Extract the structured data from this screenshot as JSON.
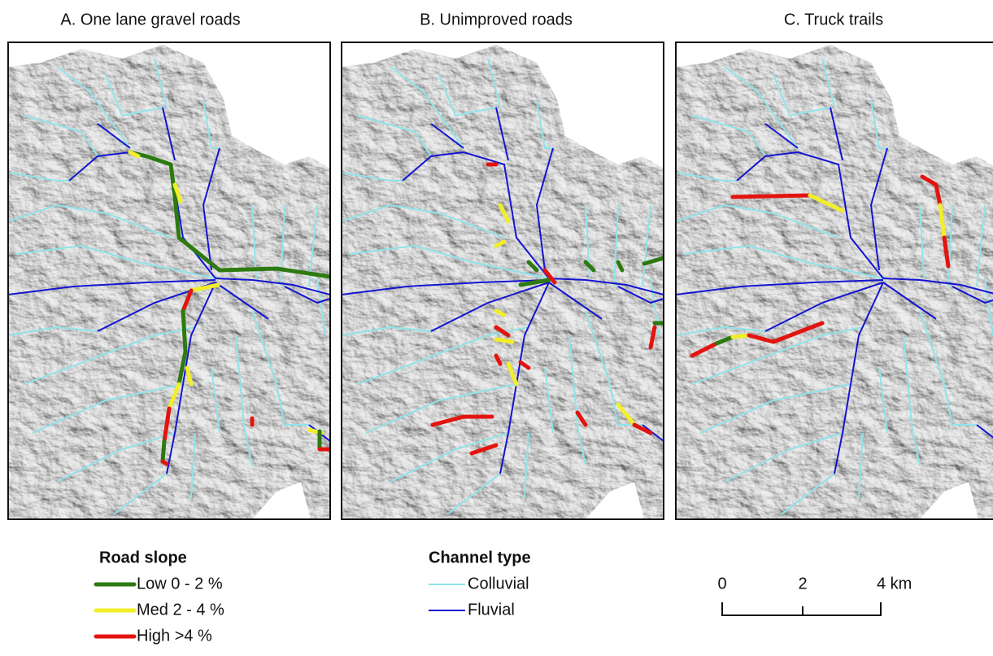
{
  "panels": [
    {
      "title": "A. One lane gravel roads"
    },
    {
      "title": "B. Unimproved roads"
    },
    {
      "title": "C. Truck trails"
    }
  ],
  "legend": {
    "road_slope": {
      "title": "Road slope",
      "items": [
        {
          "label": "Low 0 - 2 %",
          "color": "#2d7a10"
        },
        {
          "label": "Med 2 - 4 %",
          "color": "#f2ee2a"
        },
        {
          "label": "High >4 %",
          "color": "#e3140f"
        }
      ]
    },
    "channel_type": {
      "title": "Channel type",
      "items": [
        {
          "label": "Colluvial",
          "color": "#8fe3ea"
        },
        {
          "label": "Fluvial",
          "color": "#1414d2"
        }
      ]
    }
  },
  "scale_bar": {
    "labels": [
      "0",
      "2",
      "4 km"
    ]
  }
}
